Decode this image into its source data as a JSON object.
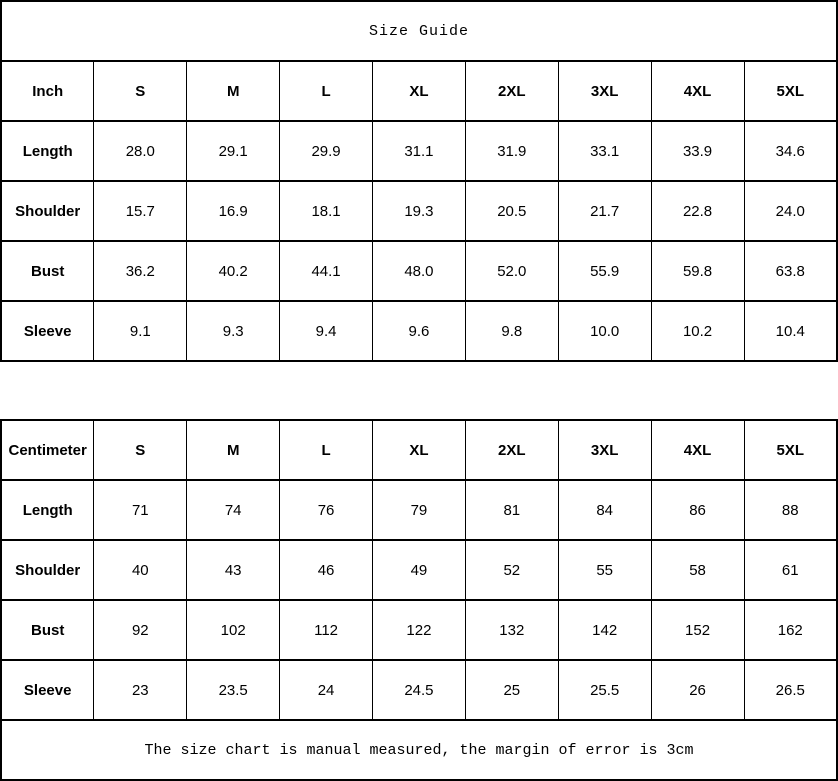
{
  "title": "Size Guide",
  "footer": "The size chart is manual measured, the margin of error is 3cm",
  "colors": {
    "background": "#ffffff",
    "border": "#000000",
    "text": "#000000"
  },
  "chart_data": [
    {
      "type": "table",
      "unit_label": "Inch",
      "columns": [
        "S",
        "M",
        "L",
        "XL",
        "2XL",
        "3XL",
        "4XL",
        "5XL"
      ],
      "rows": [
        {
          "label": "Length",
          "values": [
            "28.0",
            "29.1",
            "29.9",
            "31.1",
            "31.9",
            "33.1",
            "33.9",
            "34.6"
          ]
        },
        {
          "label": "Shoulder",
          "values": [
            "15.7",
            "16.9",
            "18.1",
            "19.3",
            "20.5",
            "21.7",
            "22.8",
            "24.0"
          ]
        },
        {
          "label": "Bust",
          "values": [
            "36.2",
            "40.2",
            "44.1",
            "48.0",
            "52.0",
            "55.9",
            "59.8",
            "63.8"
          ]
        },
        {
          "label": "Sleeve",
          "values": [
            "9.1",
            "9.3",
            "9.4",
            "9.6",
            "9.8",
            "10.0",
            "10.2",
            "10.4"
          ]
        }
      ]
    },
    {
      "type": "table",
      "unit_label": "Centimeter",
      "columns": [
        "S",
        "M",
        "L",
        "XL",
        "2XL",
        "3XL",
        "4XL",
        "5XL"
      ],
      "rows": [
        {
          "label": "Length",
          "values": [
            "71",
            "74",
            "76",
            "79",
            "81",
            "84",
            "86",
            "88"
          ]
        },
        {
          "label": "Shoulder",
          "values": [
            "40",
            "43",
            "46",
            "49",
            "52",
            "55",
            "58",
            "61"
          ]
        },
        {
          "label": "Bust",
          "values": [
            "92",
            "102",
            "112",
            "122",
            "132",
            "142",
            "152",
            "162"
          ]
        },
        {
          "label": "Sleeve",
          "values": [
            "23",
            "23.5",
            "24",
            "24.5",
            "25",
            "25.5",
            "26",
            "26.5"
          ]
        }
      ]
    }
  ]
}
